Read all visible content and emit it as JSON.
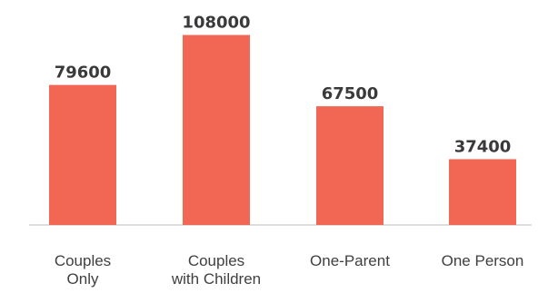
{
  "chart_data": {
    "type": "bar",
    "categories": [
      [
        "Couples",
        "Only"
      ],
      [
        "Couples",
        "with Children"
      ],
      [
        "One-Parent"
      ],
      [
        "One Person"
      ]
    ],
    "values": [
      79600,
      108000,
      67500,
      37400
    ],
    "title": "",
    "xlabel": "",
    "ylabel": "",
    "ylim": [
      0,
      115000
    ],
    "grid": false,
    "bar_color": "#f26654"
  }
}
